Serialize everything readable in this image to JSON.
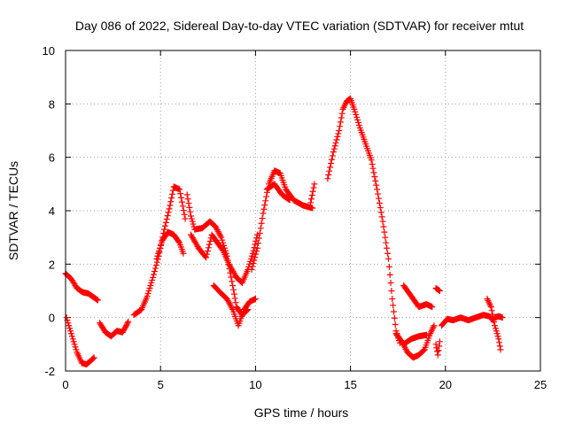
{
  "chart_data": {
    "type": "scatter",
    "title": "Day 086 of 2022, Sidereal Day-to-day VTEC variation (SDTVAR) for receiver mtut",
    "xlabel": "GPS time / hours",
    "ylabel": "SDTVAR / TECUs",
    "xlim": [
      0,
      25
    ],
    "ylim": [
      -2,
      10
    ],
    "xticks": [
      "0",
      "5",
      "10",
      "15",
      "20",
      "25"
    ],
    "yticks": [
      "-2",
      "0",
      "2",
      "4",
      "6",
      "8",
      "10"
    ],
    "grid": true,
    "marker": "+",
    "color": "#ff0000",
    "series": [
      {
        "name": "seg1",
        "points": [
          [
            0.0,
            1.65
          ],
          [
            0.3,
            1.45
          ],
          [
            0.6,
            1.1
          ],
          [
            0.9,
            0.95
          ],
          [
            1.2,
            0.9
          ],
          [
            1.5,
            0.75
          ],
          [
            1.7,
            0.65
          ]
        ]
      },
      {
        "name": "seg2",
        "points": [
          [
            0.05,
            0.0
          ],
          [
            0.3,
            -0.6
          ],
          [
            0.6,
            -1.3
          ],
          [
            0.85,
            -1.7
          ],
          [
            1.1,
            -1.75
          ],
          [
            1.35,
            -1.6
          ],
          [
            1.5,
            -1.5
          ]
        ]
      },
      {
        "name": "seg3",
        "points": [
          [
            1.8,
            -0.2
          ],
          [
            2.1,
            -0.55
          ],
          [
            2.4,
            -0.7
          ],
          [
            2.7,
            -0.5
          ],
          [
            3.0,
            -0.55
          ],
          [
            3.2,
            -0.3
          ],
          [
            3.3,
            -0.15
          ]
        ]
      },
      {
        "name": "seg4",
        "points": [
          [
            3.6,
            0.1
          ],
          [
            4.0,
            0.3
          ],
          [
            4.3,
            0.8
          ],
          [
            4.6,
            1.5
          ],
          [
            4.9,
            2.3
          ],
          [
            5.2,
            3.3
          ],
          [
            5.5,
            4.2
          ],
          [
            5.7,
            4.9
          ],
          [
            6.0,
            4.8
          ],
          [
            6.3,
            3.7
          ]
        ]
      },
      {
        "name": "seg5",
        "points": [
          [
            4.8,
            2.2
          ],
          [
            5.1,
            2.9
          ],
          [
            5.4,
            3.2
          ],
          [
            5.7,
            3.1
          ],
          [
            6.0,
            2.8
          ],
          [
            6.2,
            2.4
          ]
        ]
      },
      {
        "name": "seg6",
        "points": [
          [
            6.4,
            4.6
          ],
          [
            6.6,
            3.8
          ],
          [
            6.8,
            3.3
          ],
          [
            7.2,
            3.35
          ],
          [
            7.6,
            3.6
          ],
          [
            7.9,
            3.4
          ],
          [
            8.2,
            3.0
          ],
          [
            8.5,
            2.3
          ],
          [
            8.8,
            1.2
          ],
          [
            9.0,
            0.4
          ],
          [
            9.3,
            0.1
          ],
          [
            9.6,
            0.3
          ]
        ]
      },
      {
        "name": "seg7",
        "points": [
          [
            6.6,
            3.1
          ],
          [
            7.0,
            2.6
          ],
          [
            7.4,
            2.25
          ],
          [
            7.7,
            3.1
          ],
          [
            8.0,
            2.8
          ],
          [
            8.3,
            2.5
          ],
          [
            8.6,
            2.0
          ],
          [
            9.0,
            1.5
          ],
          [
            9.3,
            1.3
          ],
          [
            9.6,
            1.8
          ],
          [
            9.9,
            2.5
          ],
          [
            10.1,
            3.1
          ]
        ]
      },
      {
        "name": "seg8",
        "points": [
          [
            7.8,
            1.2
          ],
          [
            8.2,
            0.9
          ],
          [
            8.5,
            0.7
          ],
          [
            8.8,
            0.3
          ],
          [
            9.1,
            -0.3
          ],
          [
            9.4,
            0.3
          ],
          [
            9.7,
            0.6
          ],
          [
            10.0,
            0.7
          ]
        ]
      },
      {
        "name": "seg9",
        "points": [
          [
            9.8,
            1.8
          ],
          [
            10.1,
            2.6
          ],
          [
            10.4,
            3.9
          ],
          [
            10.7,
            5.0
          ],
          [
            11.0,
            5.5
          ],
          [
            11.3,
            5.4
          ],
          [
            11.6,
            4.8
          ],
          [
            12.0,
            4.4
          ],
          [
            12.5,
            4.2
          ],
          [
            13.0,
            4.1
          ]
        ]
      },
      {
        "name": "seg10",
        "points": [
          [
            10.6,
            4.8
          ],
          [
            11.0,
            5.0
          ],
          [
            11.4,
            4.6
          ],
          [
            11.8,
            4.4
          ]
        ]
      },
      {
        "name": "seg11",
        "points": [
          [
            12.9,
            4.3
          ],
          [
            13.1,
            5.0
          ]
        ]
      },
      {
        "name": "seg12",
        "points": [
          [
            13.8,
            5.2
          ],
          [
            14.1,
            6.2
          ],
          [
            14.4,
            7.0
          ],
          [
            14.6,
            7.8
          ],
          [
            14.8,
            8.1
          ],
          [
            15.0,
            8.2
          ],
          [
            15.2,
            7.8
          ],
          [
            15.5,
            7.1
          ],
          [
            15.8,
            6.5
          ],
          [
            16.1,
            5.9
          ],
          [
            16.4,
            4.8
          ],
          [
            16.7,
            3.6
          ],
          [
            17.0,
            2.2
          ],
          [
            17.2,
            0.7
          ],
          [
            17.4,
            -0.5
          ],
          [
            17.6,
            -0.95
          ]
        ]
      },
      {
        "name": "seg13",
        "points": [
          [
            17.4,
            -0.6
          ],
          [
            17.7,
            -0.9
          ],
          [
            18.0,
            -1.3
          ],
          [
            18.3,
            -1.5
          ],
          [
            18.6,
            -1.4
          ],
          [
            18.9,
            -1.2
          ],
          [
            19.2,
            -0.6
          ],
          [
            19.4,
            -0.3
          ]
        ]
      },
      {
        "name": "seg14",
        "points": [
          [
            17.8,
            -1.0
          ],
          [
            18.2,
            -0.8
          ],
          [
            18.6,
            -0.7
          ],
          [
            19.0,
            -0.65
          ]
        ]
      },
      {
        "name": "seg15",
        "points": [
          [
            17.8,
            1.2
          ],
          [
            18.2,
            0.8
          ],
          [
            18.6,
            0.4
          ],
          [
            19.0,
            0.5
          ],
          [
            19.3,
            0.4
          ]
        ]
      },
      {
        "name": "seg16",
        "points": [
          [
            19.5,
            1.1
          ],
          [
            19.7,
            1.0
          ]
        ]
      },
      {
        "name": "seg17",
        "points": [
          [
            19.5,
            -1.0
          ],
          [
            19.6,
            -1.4
          ],
          [
            19.7,
            -0.9
          ]
        ]
      },
      {
        "name": "seg18",
        "points": [
          [
            19.8,
            -0.3
          ],
          [
            20.1,
            -0.05
          ],
          [
            20.4,
            -0.1
          ],
          [
            20.8,
            0.0
          ],
          [
            21.2,
            -0.1
          ],
          [
            21.6,
            0.0
          ],
          [
            22.0,
            0.1
          ],
          [
            22.3,
            0.05
          ],
          [
            22.5,
            -0.1
          ]
        ]
      },
      {
        "name": "seg19",
        "points": [
          [
            22.2,
            0.7
          ],
          [
            22.4,
            0.4
          ],
          [
            22.6,
            -0.3
          ],
          [
            22.8,
            -0.8
          ],
          [
            22.9,
            -1.2
          ]
        ]
      },
      {
        "name": "seg20",
        "points": [
          [
            22.6,
            0.0
          ],
          [
            22.8,
            0.05
          ],
          [
            23.0,
            0.0
          ]
        ]
      }
    ]
  }
}
